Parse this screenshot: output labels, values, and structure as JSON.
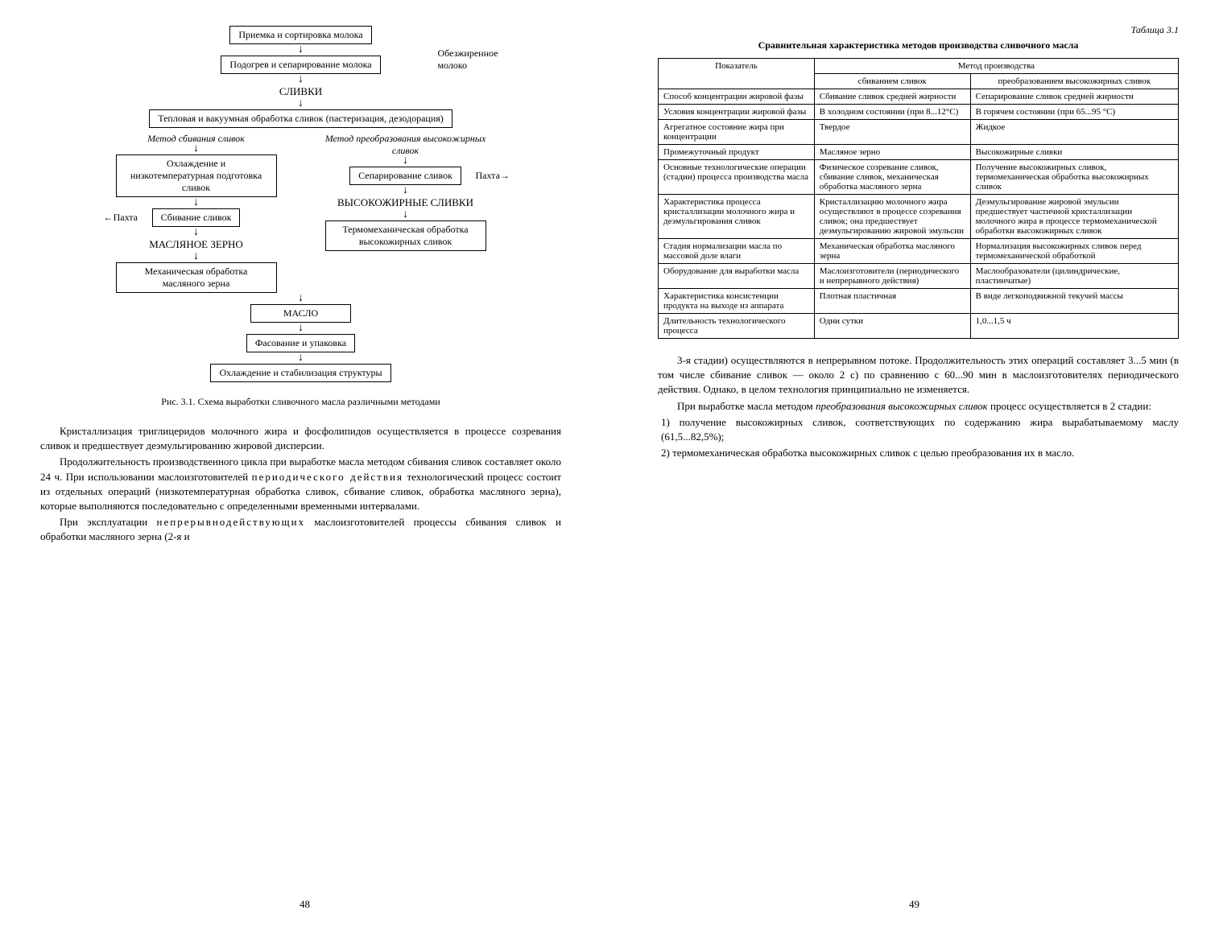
{
  "diagram": {
    "box1": "Приемка и сортировка молока",
    "box2": "Подогрев и сепарирование молока",
    "sidelabel1": "Обезжиренное молоко",
    "label1": "СЛИВКИ",
    "box3": "Тепловая и вакуумная обработка сливок (пастеризация, дезодорация)",
    "leftMethod": "Метод сбивания сливок",
    "rightMethod": "Метод преобразования высокожирных сливок",
    "leftBox1": "Охлаждение и низкотемпературная подготовка сливок",
    "rightBox1": "Сепарирование сливок",
    "rightSide1": "Пахта→",
    "leftBox2": "Сбивание сливок",
    "rightLabel1": "ВЫСОКОЖИРНЫЕ СЛИВКИ",
    "leftSide1": "←Пахта",
    "leftLabel1": "МАСЛЯНОЕ ЗЕРНО",
    "rightBox2": "Термомеханическая обработка высокожирных сливок",
    "leftBox3": "Механическая обработка масляного зерна",
    "box4": "МАСЛО",
    "box5": "Фасование и упаковка",
    "box6": "Охлаждение и стабилизация структуры",
    "caption": "Рис. 3.1. Схема выработки сливочного масла различными методами"
  },
  "leftParagraphs": [
    "Кристаллизация триглицеридов молочного жира и фосфолипидов осуществляется в процессе созревания сливок и предшествует деэмульгированию жировой дисперсии.",
    "Продолжительность производственного цикла при выработке масла методом сбивания сливок составляет около 24 ч. При использовании маслоизготовителей периодического действия технологический процесс состоит из отдельных операций (низкотемпературная обработка сливок, сбивание сливок, обработка масляного зерна), которые выполняются последовательно с определенными временными интервалами.",
    "При эксплуатации непрерывнодействующих маслоизготовителей процессы сбивания сливок и обработки масляного зерна (2-я и"
  ],
  "leftPageNum": "48",
  "tableLabel": "Таблица 3.1",
  "tableTitle": "Сравнительная характеристика методов производства сливочного масла",
  "tableHeaders": {
    "h1": "Показатель",
    "h2": "Метод производства",
    "h2a": "сбиванием сливок",
    "h2b": "преобразованием высокожирных сливок"
  },
  "tableRows": [
    [
      "Способ концентрации жировой фазы",
      "Сбивание сливок средней жирности",
      "Сепарирование сливок средней жирности"
    ],
    [
      "Условия концентрации жировой фазы",
      "В холодном состоянии (при 8...12°С)",
      "В горячем состоянии (при 65...95 °С)"
    ],
    [
      "Агрегатное состояние жира при концентрации",
      "Твердое",
      "Жидкое"
    ],
    [
      "Промежуточный продукт",
      "Масляное зерно",
      "Высокожирные сливки"
    ],
    [
      "Основные технологические операции (стадии) процесса производства масла",
      "Физическое созревание сливок, сбивание сливок, механическая обработка масляного зерна",
      "Получение высокожирных сливок, термомеханическая обработка высокожирных сливок"
    ],
    [
      "Характеристика процесса кристаллизации молочного жира и деэмульгирования сливок",
      "Кристаллизацию молочного жира осуществляют в процессе созревания сливок; она предшествует деэмульгированию жировой эмульсии",
      "Деэмульгирование жировой эмульсии предшествует частичной кристаллизации молочного жира в процессе термомеханической обработки высокожирных сливок"
    ],
    [
      "Стадия нормализации масла по массовой доле влаги",
      "Механическая обработка масляного зерна",
      "Нормализация высокожирных сливок перед термомеханической обработкой"
    ],
    [
      "Оборудование для выработки масла",
      "Маслоизготовители (периодического и непрерывного действия)",
      "Маслообразователи (цилиндрические, пластинчатые)"
    ],
    [
      "Характеристика консистенции продукта на выходе из аппарата",
      "Плотная пластичная",
      "В виде легкоподвижной текучей массы"
    ],
    [
      "Длительность технологического процесса",
      "Одни сутки",
      "1,0...1,5 ч"
    ]
  ],
  "rightParagraphs": [
    "3-я стадии) осуществляются в непрерывном потоке. Продолжительность этих операций составляет 3...5 мин (в том числе сбивание сливок — около 2 с) по сравнению с 60...90 мин в маслоизготовителях периодического действия. Однако, в целом технология принципиально не изменяется.",
    "При выработке масла методом преобразования высокожирных сливок процесс осуществляется в 2 стадии:"
  ],
  "listItems": [
    "1) получение высокожирных сливок, соответствующих по содержанию жира вырабатываемому маслу (61,5...82,5%);",
    "2) термомеханическая обработка высокожирных сливок с целью преобразования их в масло."
  ],
  "rightPageNum": "49"
}
